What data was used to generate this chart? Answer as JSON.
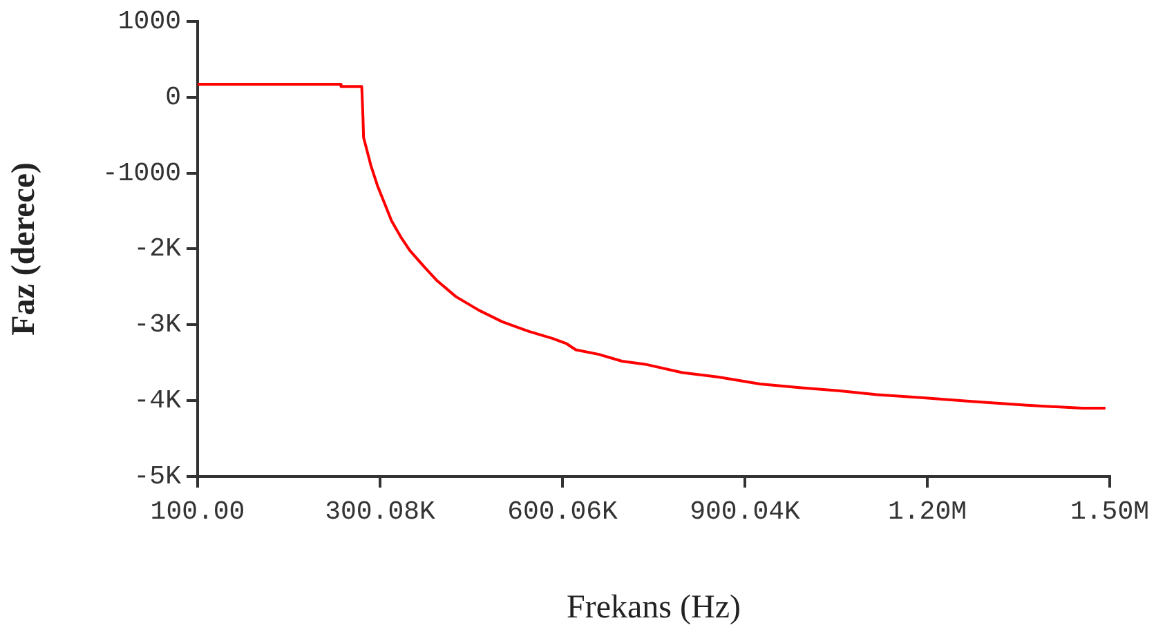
{
  "chart_data": {
    "type": "line",
    "xlabel": "Frekans (Hz)",
    "ylabel": "Faz (derece)",
    "xlim": [
      100,
      1500000
    ],
    "xticks": [
      {
        "value": 100,
        "label": "100.00"
      },
      {
        "value": 300080,
        "label": "300.08K"
      },
      {
        "value": 600060,
        "label": "600.06K"
      },
      {
        "value": 900040,
        "label": "900.04K"
      },
      {
        "value": 1200020,
        "label": "1.20M"
      },
      {
        "value": 1500000,
        "label": "1.50M"
      }
    ],
    "ylim": [
      -5000,
      1000
    ],
    "yticks": [
      1000,
      0,
      -1000,
      {
        "value": -2000,
        "label": "-2K"
      },
      {
        "value": -3000,
        "label": "-3K"
      },
      {
        "value": -4000,
        "label": "-4K"
      },
      {
        "value": -5000,
        "label": "-5K"
      }
    ],
    "grid": false,
    "legend": false,
    "marker": "none",
    "line_style": "solid",
    "series": [
      {
        "color": "#ff0000",
        "x": [
          100,
          235000,
          236000,
          270000,
          272000,
          273000,
          285000,
          296000,
          308000,
          319000,
          334000,
          349000,
          372000,
          394000,
          425000,
          463000,
          501000,
          546000,
          584000,
          607000,
          622000,
          660000,
          698000,
          736000,
          797000,
          857000,
          925000,
          993000,
          1054000,
          1115000,
          1190000,
          1273000,
          1364000,
          1455000,
          1493000
        ],
        "values": [
          170,
          170,
          140,
          140,
          -260,
          -530,
          -900,
          -1170,
          -1410,
          -1630,
          -1840,
          -2020,
          -2230,
          -2420,
          -2630,
          -2810,
          -2960,
          -3090,
          -3180,
          -3250,
          -3330,
          -3390,
          -3480,
          -3520,
          -3630,
          -3690,
          -3780,
          -3830,
          -3870,
          -3920,
          -3960,
          -4010,
          -4060,
          -4100,
          -4100
        ]
      }
    ]
  }
}
